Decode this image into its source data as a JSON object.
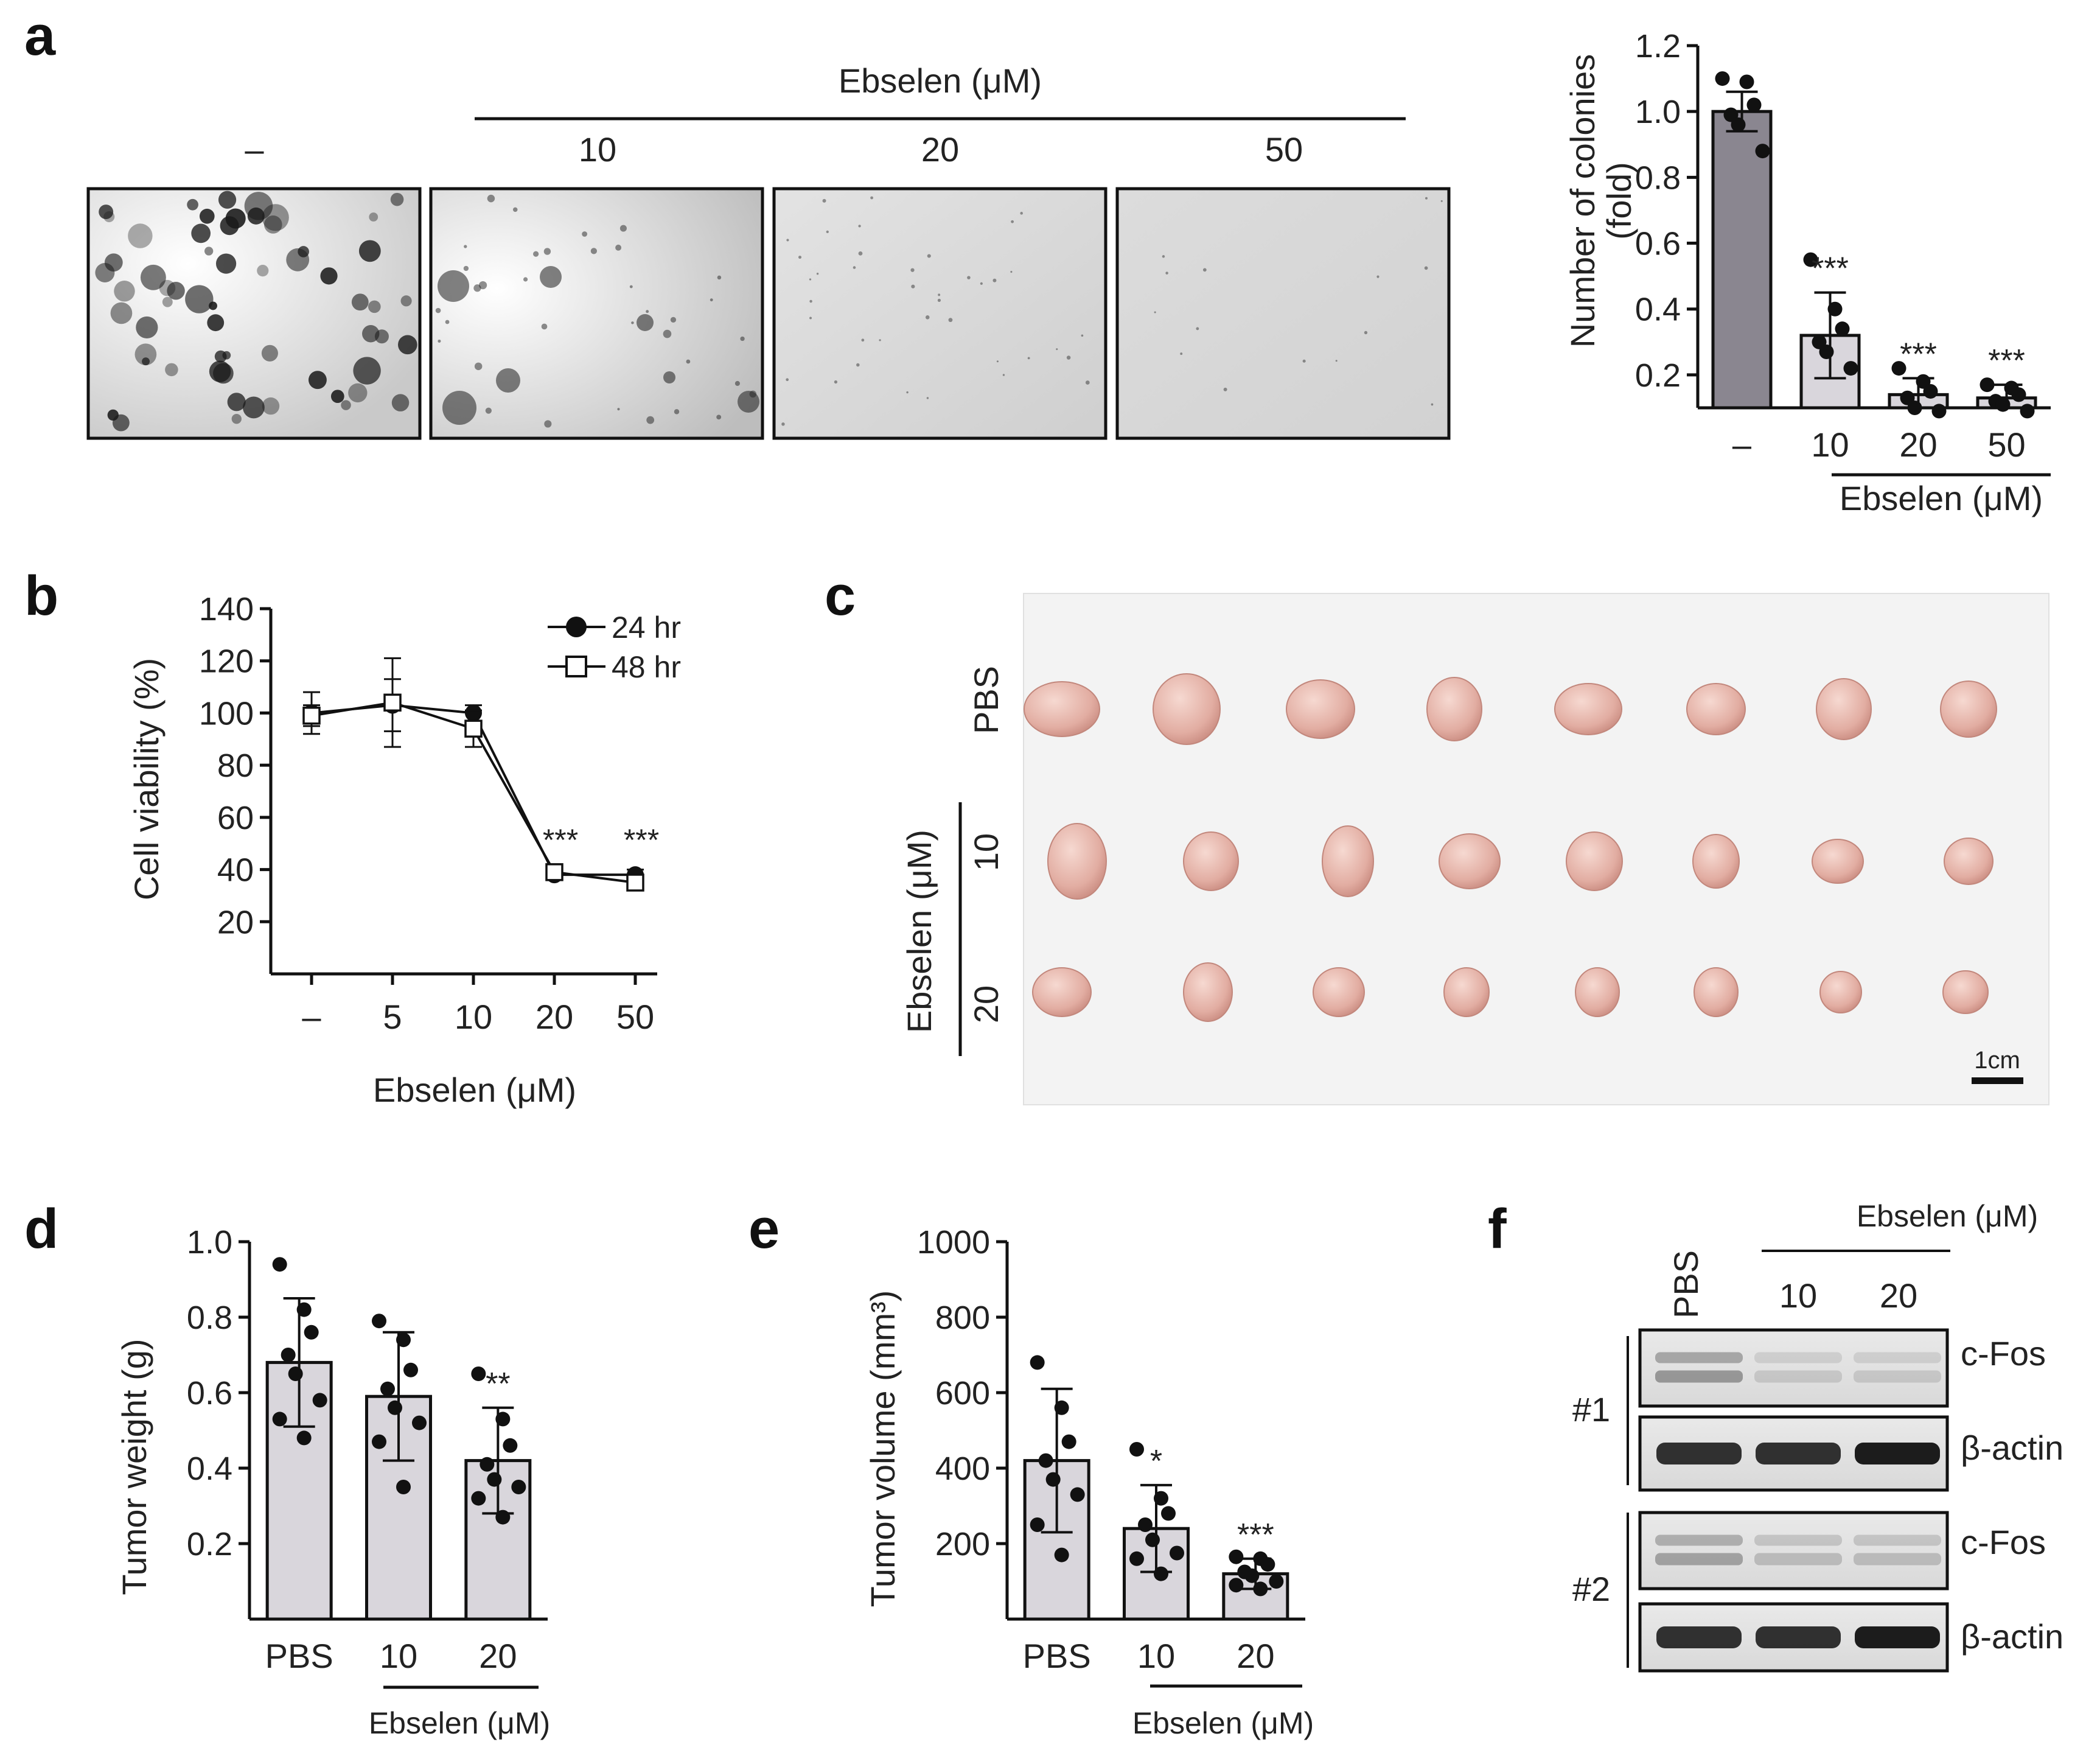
{
  "colors": {
    "bar_dark": "#8a8690",
    "bar_light": "#d9d6dc",
    "axis": "#111111",
    "panel_c_background": "#f2f2f2",
    "tumor": "#e7b7ad"
  },
  "panel_labels": {
    "a": "a",
    "b": "b",
    "c": "c",
    "d": "d",
    "e": "e",
    "f": "f"
  },
  "panel_a": {
    "header": "Ebselen (μM)",
    "lane_labels": [
      "–",
      "10",
      "20",
      "50"
    ],
    "image_descriptions": [
      "many dark colonies",
      "few colonies",
      "almost no colonies",
      "no colonies"
    ]
  },
  "icons": {
    "colony_image": "colony-photo",
    "tumor_photo": "tumor-photo",
    "western_blot": "blot-image"
  },
  "panel_c": {
    "rows": [
      "PBS",
      "10",
      "20"
    ],
    "group_label": "Ebselen (μM)",
    "scale_bar": "1cm"
  },
  "panel_f": {
    "header": "Ebselen (μM)",
    "lanes": [
      "PBS",
      "10",
      "20"
    ],
    "replicates": [
      "#1",
      "#2"
    ],
    "bands": [
      "c-Fos",
      "β-actin"
    ]
  },
  "chart_data": [
    {
      "id": "a_colonies",
      "type": "bar",
      "ylabel_line1": "Number of colonies",
      "ylabel_line2": "(fold)",
      "xlabel": "Ebselen (μM)",
      "categories": [
        "–",
        "10",
        "20",
        "50"
      ],
      "values": [
        1.0,
        0.32,
        0.14,
        0.13
      ],
      "errors": [
        0.06,
        0.13,
        0.05,
        0.04
      ],
      "significance": [
        "",
        "***",
        "***",
        "***"
      ],
      "points": [
        [
          1.1,
          1.09,
          1.02,
          0.99,
          0.96,
          0.88
        ],
        [
          0.55,
          0.4,
          0.34,
          0.3,
          0.27,
          0.22
        ],
        [
          0.22,
          0.18,
          0.15,
          0.13,
          0.1,
          0.09
        ],
        [
          0.17,
          0.16,
          0.14,
          0.12,
          0.11,
          0.09
        ]
      ],
      "ylim": [
        0.1,
        1.2
      ],
      "yticks": [
        "0.2",
        "0.4",
        "0.6",
        "0.8",
        "1.0",
        "1.2"
      ]
    },
    {
      "id": "b_viability",
      "type": "line",
      "ylabel": "Cell viability (%)",
      "xlabel": "Ebselen (μM)",
      "x": [
        "–",
        "5",
        "10",
        "20",
        "50"
      ],
      "series": [
        {
          "name": "24 hr",
          "values": [
            100,
            103,
            100,
            38,
            38
          ],
          "errors": [
            8,
            10,
            3,
            2,
            2
          ],
          "marker": "circle"
        },
        {
          "name": "48 hr",
          "values": [
            99,
            104,
            94,
            39,
            35
          ],
          "errors": [
            4,
            17,
            7,
            2,
            2
          ],
          "marker": "square"
        }
      ],
      "significance": [
        "",
        "",
        "",
        "***",
        "***"
      ],
      "ylim": [
        0,
        140
      ],
      "yticks": [
        "20",
        "40",
        "60",
        "80",
        "100",
        "120",
        "140"
      ]
    },
    {
      "id": "d_weight",
      "type": "bar",
      "ylabel": "Tumor weight (g)",
      "xlabel": "Ebselen (μM)",
      "categories": [
        "PBS",
        "10",
        "20"
      ],
      "values": [
        0.68,
        0.59,
        0.42
      ],
      "errors": [
        0.17,
        0.17,
        0.14
      ],
      "significance": [
        "",
        "",
        "**"
      ],
      "points": [
        [
          0.94,
          0.82,
          0.76,
          0.7,
          0.65,
          0.58,
          0.53,
          0.48
        ],
        [
          0.79,
          0.74,
          0.66,
          0.61,
          0.56,
          0.52,
          0.47,
          0.35
        ],
        [
          0.65,
          0.53,
          0.46,
          0.41,
          0.37,
          0.35,
          0.32,
          0.27
        ]
      ],
      "ylim": [
        0,
        1.0
      ],
      "yticks": [
        "0.2",
        "0.4",
        "0.6",
        "0.8",
        "1.0"
      ]
    },
    {
      "id": "e_volume",
      "type": "bar",
      "ylabel": "Tumor volume (mm³)",
      "xlabel": "Ebselen (μM)",
      "categories": [
        "PBS",
        "10",
        "20"
      ],
      "values": [
        420,
        240,
        120
      ],
      "errors": [
        190,
        115,
        40
      ],
      "significance": [
        "",
        "*",
        "***"
      ],
      "points": [
        [
          680,
          560,
          470,
          420,
          370,
          330,
          250,
          170
        ],
        [
          450,
          320,
          280,
          250,
          210,
          175,
          160,
          120
        ],
        [
          165,
          160,
          145,
          125,
          115,
          100,
          90,
          80
        ]
      ],
      "ylim": [
        0,
        1000
      ],
      "yticks": [
        "200",
        "400",
        "600",
        "800",
        "1000"
      ]
    }
  ]
}
